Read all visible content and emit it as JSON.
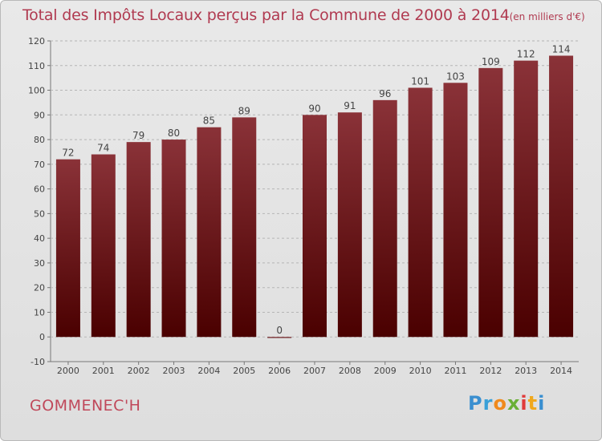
{
  "title": "Total des Impôts Locaux perçus par la Commune de 2000 à 2014",
  "unit": "(en milliers d'€)",
  "commune": "GOMMENEC'H",
  "logo": {
    "p": "P",
    "r": "r",
    "o": "o",
    "x": "x",
    "i1": "i",
    "t": "t",
    "i2": "i"
  },
  "colors": {
    "bar_top": "#8a3238",
    "bar_bottom": "#4a0000",
    "title": "#b03a50"
  },
  "chart_data": {
    "type": "bar",
    "categories": [
      "2000",
      "2001",
      "2002",
      "2003",
      "2004",
      "2005",
      "2006",
      "2007",
      "2008",
      "2009",
      "2010",
      "2011",
      "2012",
      "2013",
      "2014"
    ],
    "values": [
      72,
      74,
      79,
      80,
      85,
      89,
      0,
      90,
      91,
      96,
      101,
      103,
      109,
      112,
      114
    ],
    "ylim": [
      -10,
      120
    ],
    "yticks": [
      -10,
      0,
      10,
      20,
      30,
      40,
      50,
      60,
      70,
      80,
      90,
      100,
      110,
      120
    ],
    "grid": true,
    "xlabel": "",
    "ylabel": ""
  }
}
